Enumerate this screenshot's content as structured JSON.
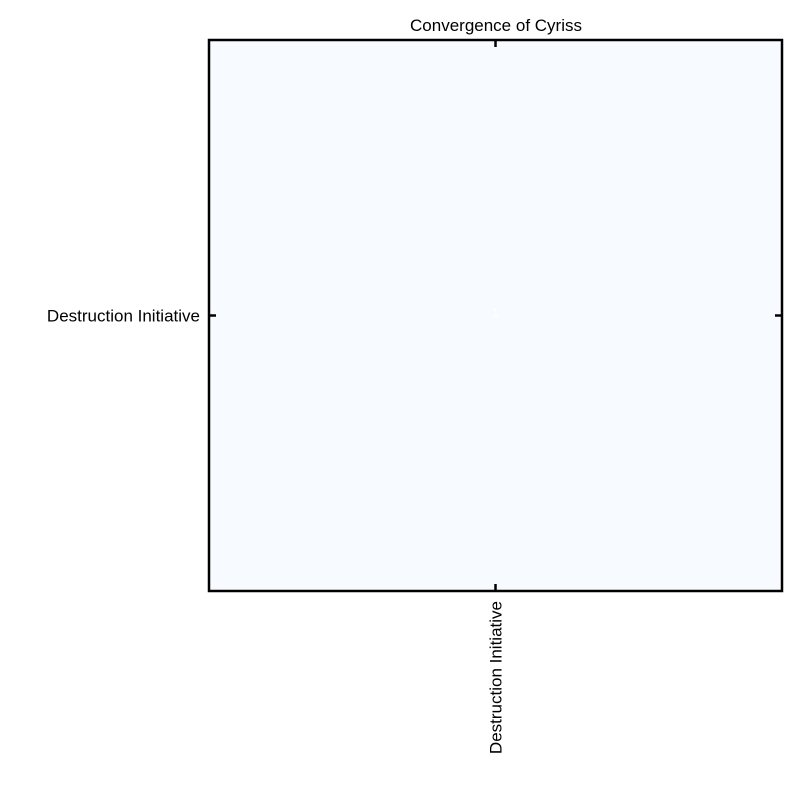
{
  "chart_data": {
    "type": "heatmap",
    "title": "Convergence of Cyriss",
    "x_categories": [
      "Destruction Initiative"
    ],
    "y_categories": [
      "Destruction Initiative"
    ],
    "values": [
      [
        1
      ]
    ],
    "cell_labels": [
      [
        "1"
      ]
    ],
    "colors": {
      "cell": "#f7fbff",
      "cell_label": "#ffffff",
      "frame": "#000000"
    },
    "grid": false,
    "legend": "none"
  }
}
